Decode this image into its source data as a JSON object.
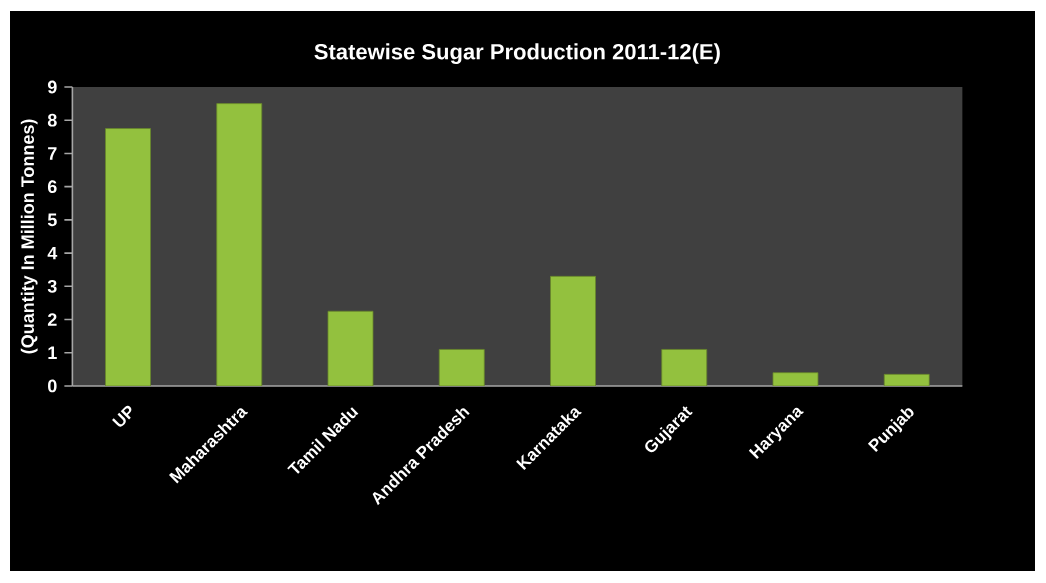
{
  "chart_data": {
    "type": "bar",
    "title": "Statewise Sugar Production 2011-12(E)",
    "ylabel": "(Quantity In Million Tonnes)",
    "categories": [
      "UP",
      "Maharashtra",
      "Tamil Nadu",
      "Andhra Pradesh",
      "Karnataka",
      "Gujarat",
      "Haryana",
      "Punjab"
    ],
    "values": [
      7.75,
      8.5,
      2.25,
      1.1,
      3.3,
      1.1,
      0.4,
      0.35
    ],
    "color": "#93c13e",
    "ylim": [
      0,
      9
    ],
    "yticks": [
      0,
      1,
      2,
      3,
      4,
      5,
      6,
      7,
      8,
      9
    ]
  }
}
